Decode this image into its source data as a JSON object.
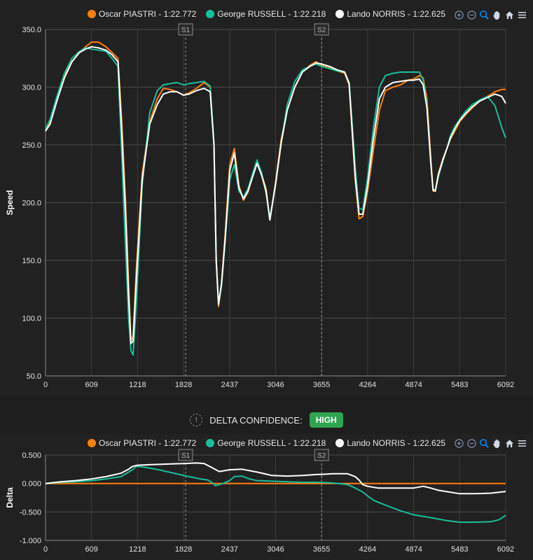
{
  "legend": [
    {
      "label": "Oscar PIASTRI - 1:22.772",
      "color": "#ff7f0e"
    },
    {
      "label": "George RUSSELL - 1:22.218",
      "color": "#1abc9c"
    },
    {
      "label": "Lando NORRIS - 1:22.625",
      "color": "#ffffff"
    }
  ],
  "toolbar": [
    "zoom-in-icon",
    "zoom-out-icon",
    "zoom-select-icon",
    "pan-hand-icon",
    "home-icon",
    "menu-icon"
  ],
  "confidence": {
    "label": "DELTA CONFIDENCE:",
    "value": "HIGH",
    "icon": "!"
  },
  "chart_data": [
    {
      "type": "line",
      "title": "",
      "ylabel": "Speed",
      "xlabel": "",
      "xlim": [
        0,
        6092
      ],
      "ylim": [
        50,
        350
      ],
      "x_ticks": [
        "0",
        "609",
        "1218",
        "1828",
        "2437",
        "3046",
        "3655",
        "4264",
        "4874",
        "5483",
        "6092"
      ],
      "y_ticks": [
        "50.0",
        "100.0",
        "150.0",
        "200.0",
        "250.0",
        "300.0",
        "350.0"
      ],
      "sectors": [
        {
          "label": "S1",
          "x": 1855
        },
        {
          "label": "S2",
          "x": 3655
        }
      ],
      "grid": true,
      "legend_position": "top",
      "series": [
        {
          "name": "Oscar PIASTRI - 1:22.772",
          "color": "#ff7f0e",
          "x": [
            0,
            60,
            150,
            250,
            350,
            450,
            530,
            609,
            700,
            800,
            880,
            960,
            1010,
            1060,
            1100,
            1130,
            1160,
            1200,
            1280,
            1380,
            1480,
            1560,
            1650,
            1740,
            1828,
            1900,
            2000,
            2100,
            2180,
            2230,
            2260,
            2290,
            2330,
            2380,
            2440,
            2500,
            2560,
            2620,
            2680,
            2740,
            2800,
            2860,
            2920,
            2970,
            3046,
            3120,
            3200,
            3300,
            3400,
            3500,
            3580,
            3655,
            3760,
            3860,
            3960,
            4020,
            4060,
            4100,
            4150,
            4200,
            4264,
            4340,
            4420,
            4500,
            4600,
            4700,
            4800,
            4874,
            4950,
            5000,
            5050,
            5100,
            5130,
            5160,
            5200,
            5260,
            5320,
            5360,
            5420,
            5483,
            5560,
            5650,
            5750,
            5850,
            5950,
            6040,
            6092
          ],
          "y": [
            262,
            270,
            290,
            310,
            322,
            330,
            335,
            339,
            339,
            335,
            330,
            325,
            270,
            200,
            130,
            80,
            85,
            140,
            225,
            270,
            290,
            299,
            298,
            296,
            293,
            295,
            299,
            304,
            300,
            250,
            150,
            110,
            130,
            175,
            233,
            247,
            215,
            202,
            209,
            222,
            235,
            225,
            212,
            185,
            218,
            255,
            280,
            300,
            313,
            319,
            322,
            319,
            317,
            314,
            312,
            302,
            260,
            220,
            186,
            188,
            210,
            245,
            280,
            297,
            300,
            302,
            306,
            307,
            310,
            308,
            290,
            240,
            210,
            210,
            225,
            238,
            248,
            255,
            262,
            270,
            276,
            282,
            288,
            292,
            296,
            298,
            298
          ]
        },
        {
          "name": "George RUSSELL - 1:22.218",
          "color": "#1abc9c",
          "x": [
            0,
            60,
            150,
            250,
            350,
            450,
            530,
            609,
            700,
            800,
            880,
            960,
            1010,
            1060,
            1100,
            1130,
            1160,
            1200,
            1280,
            1380,
            1480,
            1560,
            1650,
            1740,
            1828,
            1900,
            2000,
            2100,
            2180,
            2230,
            2260,
            2290,
            2330,
            2380,
            2440,
            2500,
            2560,
            2620,
            2680,
            2740,
            2800,
            2860,
            2920,
            2970,
            3046,
            3120,
            3200,
            3300,
            3400,
            3500,
            3580,
            3655,
            3760,
            3860,
            3960,
            4020,
            4060,
            4100,
            4150,
            4200,
            4264,
            4340,
            4420,
            4500,
            4600,
            4700,
            4800,
            4874,
            4950,
            5000,
            5050,
            5100,
            5130,
            5160,
            5200,
            5260,
            5320,
            5360,
            5420,
            5483,
            5560,
            5650,
            5750,
            5850,
            5950,
            6040,
            6092
          ],
          "y": [
            264,
            272,
            292,
            312,
            325,
            331,
            334,
            333,
            332,
            331,
            325,
            318,
            240,
            160,
            100,
            72,
            68,
            110,
            215,
            278,
            297,
            302,
            303,
            304,
            302,
            303,
            304,
            305,
            301,
            252,
            150,
            112,
            128,
            168,
            220,
            233,
            210,
            205,
            212,
            225,
            237,
            226,
            208,
            187,
            216,
            252,
            285,
            305,
            315,
            318,
            320,
            318,
            316,
            314,
            313,
            304,
            268,
            230,
            195,
            194,
            222,
            265,
            300,
            310,
            312,
            313,
            313,
            313,
            313,
            306,
            285,
            235,
            212,
            210,
            222,
            236,
            248,
            258,
            266,
            272,
            279,
            285,
            289,
            292,
            284,
            265,
            256
          ]
        },
        {
          "name": "Lando NORRIS - 1:22.625",
          "color": "#ffffff",
          "x": [
            0,
            60,
            150,
            250,
            350,
            450,
            530,
            609,
            700,
            800,
            880,
            960,
            1010,
            1060,
            1100,
            1130,
            1160,
            1200,
            1280,
            1380,
            1480,
            1560,
            1650,
            1740,
            1828,
            1900,
            2000,
            2100,
            2180,
            2230,
            2260,
            2290,
            2330,
            2380,
            2440,
            2500,
            2560,
            2620,
            2680,
            2740,
            2800,
            2860,
            2920,
            2970,
            3046,
            3120,
            3200,
            3300,
            3400,
            3500,
            3580,
            3655,
            3760,
            3860,
            3960,
            4020,
            4060,
            4100,
            4150,
            4200,
            4264,
            4340,
            4420,
            4500,
            4600,
            4700,
            4800,
            4874,
            4950,
            5000,
            5050,
            5100,
            5130,
            5160,
            5200,
            5260,
            5320,
            5360,
            5420,
            5483,
            5560,
            5650,
            5750,
            5850,
            5950,
            6040,
            6092
          ],
          "y": [
            262,
            268,
            288,
            308,
            322,
            330,
            333,
            335,
            334,
            332,
            328,
            322,
            260,
            190,
            120,
            78,
            80,
            130,
            220,
            268,
            285,
            294,
            296,
            296,
            293,
            294,
            297,
            299,
            296,
            250,
            150,
            112,
            130,
            170,
            228,
            243,
            213,
            203,
            210,
            222,
            234,
            224,
            210,
            185,
            216,
            252,
            280,
            300,
            313,
            318,
            321,
            320,
            318,
            315,
            313,
            303,
            262,
            222,
            190,
            190,
            215,
            255,
            290,
            300,
            304,
            305,
            306,
            306,
            307,
            302,
            282,
            235,
            211,
            210,
            224,
            237,
            248,
            256,
            264,
            271,
            277,
            283,
            288,
            291,
            294,
            292,
            286
          ]
        }
      ]
    },
    {
      "type": "line",
      "title": "",
      "ylabel": "Delta",
      "xlabel": "",
      "xlim": [
        0,
        6092
      ],
      "ylim": [
        -1.0,
        0.5
      ],
      "x_ticks": [
        "0",
        "609",
        "1218",
        "1828",
        "2437",
        "3046",
        "3655",
        "4264",
        "4874",
        "5483",
        "6092"
      ],
      "y_ticks": [
        "-1.000",
        "-0.500",
        "0.000",
        "0.500"
      ],
      "sectors": [
        {
          "label": "S1",
          "x": 1855
        },
        {
          "label": "S2",
          "x": 3655
        }
      ],
      "grid": true,
      "legend_position": "top",
      "series": [
        {
          "name": "Oscar PIASTRI - 1:22.772",
          "color": "#ff7f0e",
          "x": [
            0,
            6092
          ],
          "y": [
            0,
            0
          ]
        },
        {
          "name": "George RUSSELL - 1:22.218",
          "color": "#1abc9c",
          "x": [
            0,
            200,
            400,
            609,
            800,
            1000,
            1100,
            1150,
            1200,
            1300,
            1500,
            1700,
            1900,
            2050,
            2150,
            2200,
            2250,
            2300,
            2350,
            2437,
            2500,
            2600,
            2700,
            2800,
            3000,
            3200,
            3400,
            3600,
            3800,
            4000,
            4100,
            4200,
            4264,
            4350,
            4500,
            4700,
            4874,
            5100,
            5300,
            5483,
            5700,
            5900,
            6000,
            6092
          ],
          "y": [
            0,
            0.02,
            0.03,
            0.05,
            0.08,
            0.12,
            0.2,
            0.24,
            0.3,
            0.29,
            0.24,
            0.18,
            0.12,
            0.08,
            0.06,
            0.02,
            -0.04,
            -0.02,
            0.0,
            0.05,
            0.12,
            0.13,
            0.08,
            0.05,
            0.04,
            0.03,
            0.02,
            0.02,
            0.01,
            -0.02,
            -0.08,
            -0.15,
            -0.22,
            -0.3,
            -0.38,
            -0.48,
            -0.55,
            -0.6,
            -0.65,
            -0.68,
            -0.68,
            -0.67,
            -0.64,
            -0.56
          ]
        },
        {
          "name": "Lando NORRIS - 1:22.625",
          "color": "#ffffff",
          "x": [
            0,
            200,
            400,
            609,
            800,
            1000,
            1100,
            1150,
            1218,
            1400,
            1600,
            1828,
            2000,
            2100,
            2200,
            2300,
            2437,
            2600,
            2800,
            3000,
            3200,
            3400,
            3600,
            3655,
            3800,
            4000,
            4100,
            4150,
            4200,
            4264,
            4400,
            4600,
            4874,
            5000,
            5100,
            5200,
            5300,
            5483,
            5700,
            5900,
            6092
          ],
          "y": [
            0,
            0.03,
            0.05,
            0.08,
            0.12,
            0.18,
            0.25,
            0.3,
            0.32,
            0.33,
            0.34,
            0.35,
            0.36,
            0.35,
            0.28,
            0.21,
            0.24,
            0.25,
            0.2,
            0.14,
            0.13,
            0.14,
            0.16,
            0.16,
            0.17,
            0.17,
            0.12,
            0.06,
            -0.02,
            -0.05,
            -0.08,
            -0.08,
            -0.08,
            -0.05,
            -0.08,
            -0.12,
            -0.14,
            -0.18,
            -0.18,
            -0.17,
            -0.14
          ]
        }
      ]
    }
  ]
}
